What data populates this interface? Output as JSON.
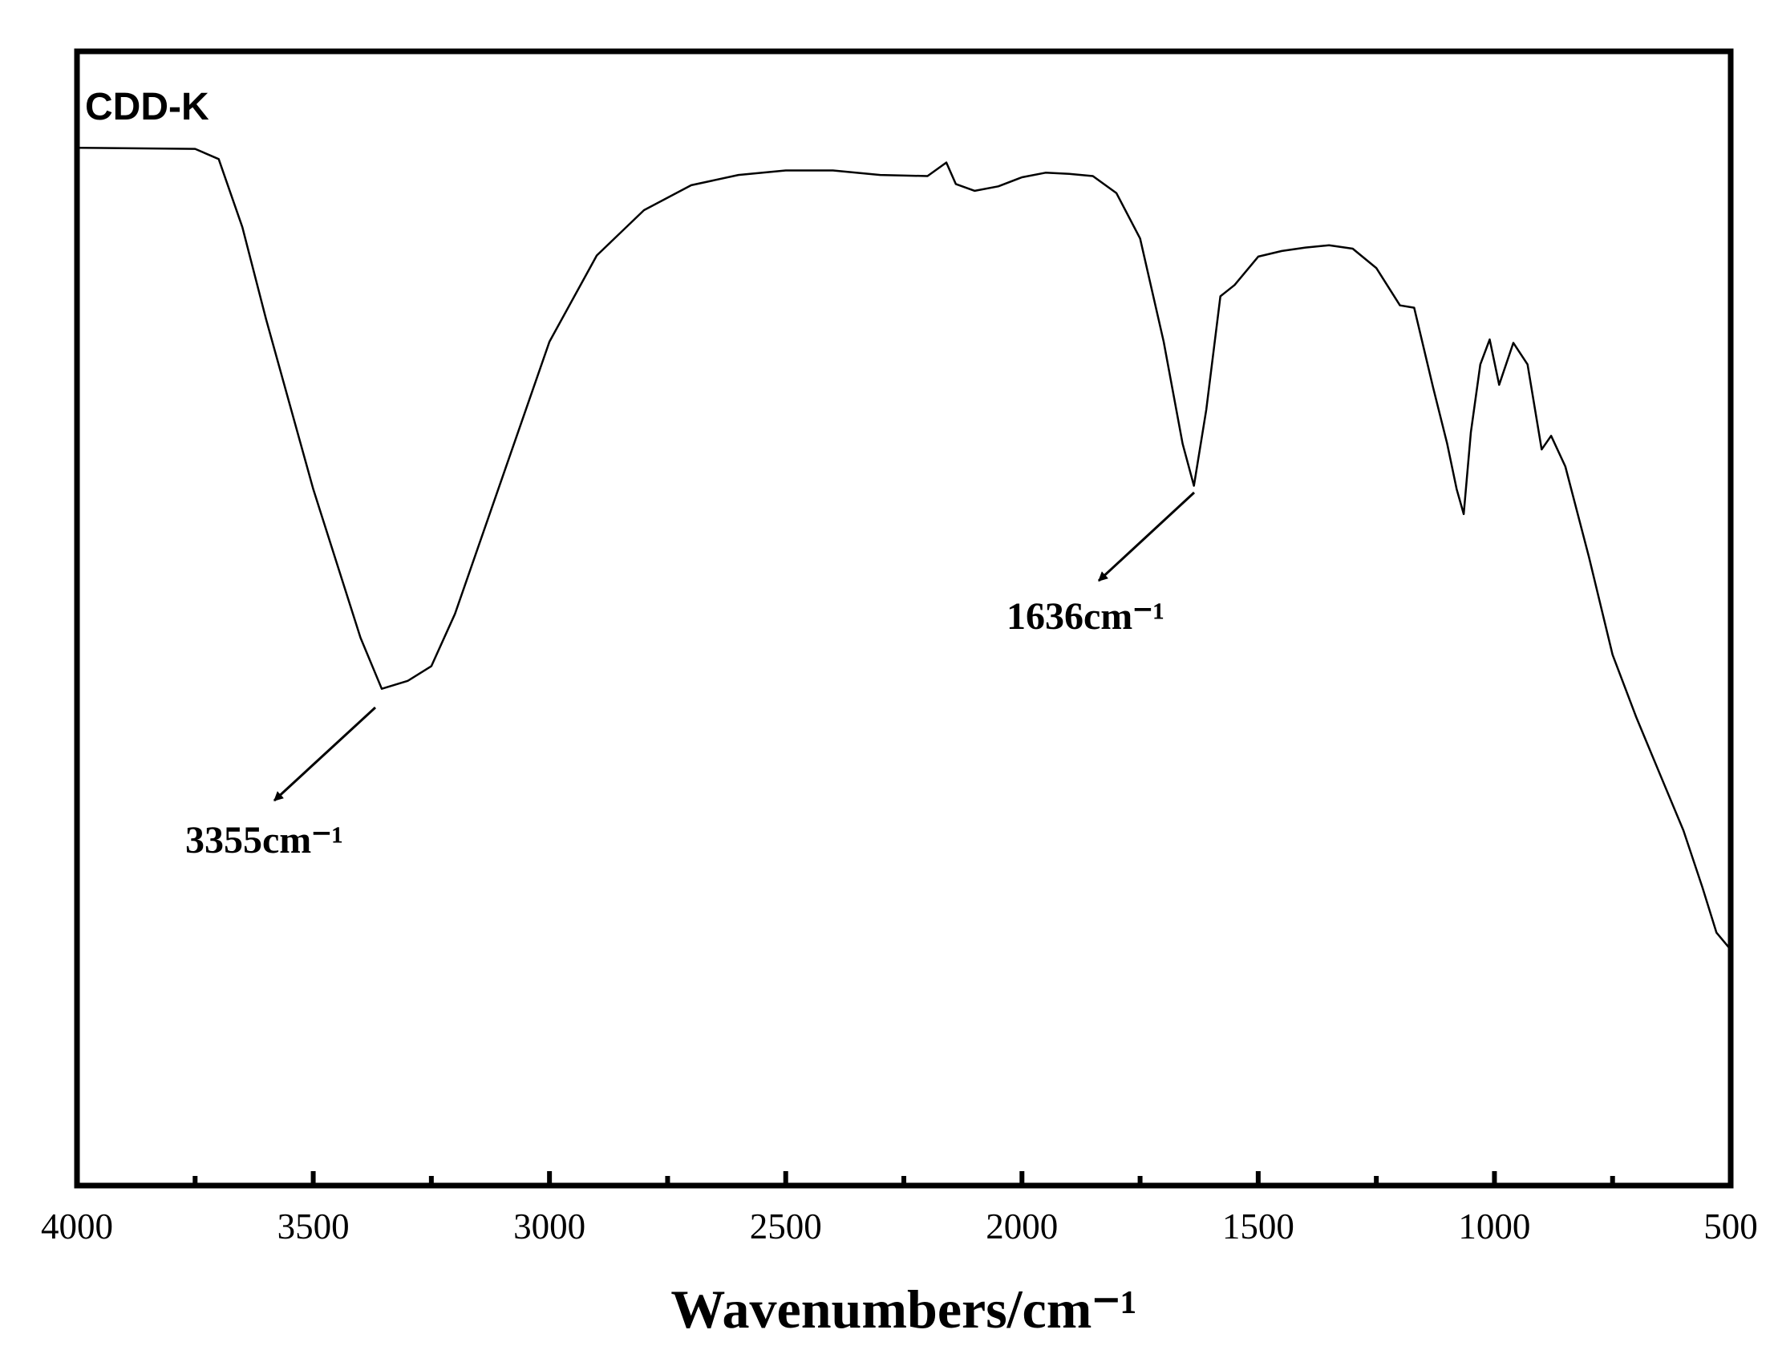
{
  "chart_data": {
    "type": "line",
    "title": "CDD-K",
    "xlabel": "Wavenumbers/cm⁻¹",
    "x": [
      4000,
      3750,
      3700,
      3650,
      3600,
      3500,
      3400,
      3355,
      3300,
      3250,
      3200,
      3100,
      3000,
      2900,
      2800,
      2700,
      2600,
      2500,
      2400,
      2300,
      2200,
      2160,
      2140,
      2100,
      2050,
      2000,
      1950,
      1900,
      1850,
      1800,
      1750,
      1700,
      1660,
      1636,
      1610,
      1580,
      1550,
      1500,
      1450,
      1400,
      1350,
      1300,
      1250,
      1200,
      1170,
      1130,
      1100,
      1080,
      1065,
      1050,
      1030,
      1010,
      990,
      960,
      930,
      900,
      880,
      850,
      800,
      750,
      700,
      650,
      600,
      560,
      530,
      510,
      500
    ],
    "series": [
      {
        "name": "CDD-K",
        "color": "#000000",
        "values": [
          91.5,
          91.4,
          90.5,
          84.5,
          76.4,
          61.4,
          48.3,
          43.8,
          44.5,
          45.8,
          50.4,
          62.4,
          74.4,
          82,
          86,
          88.2,
          89.1,
          89.5,
          89.5,
          89.1,
          89,
          90.2,
          88.3,
          87.7,
          88.1,
          88.9,
          89.3,
          89.2,
          89,
          87.5,
          83.5,
          74.4,
          65.4,
          61.7,
          68.4,
          78.4,
          79.4,
          81.9,
          82.4,
          82.7,
          82.9,
          82.6,
          80.9,
          77.6,
          77.4,
          70.4,
          65.4,
          61.4,
          59.2,
          66.4,
          72.4,
          74.6,
          70.6,
          74.3,
          72.4,
          64.9,
          66.1,
          63.4,
          55.4,
          46.8,
          41.3,
          36.3,
          31.3,
          26.3,
          22.3,
          21.3,
          20.8
        ]
      }
    ],
    "xlim": [
      4000,
      500
    ],
    "ylim": [
      0,
      100
    ],
    "xticks": [
      4000,
      3500,
      3000,
      2500,
      2000,
      1500,
      1000,
      500
    ],
    "xminor_ticks": [
      3750,
      3250,
      2750,
      2250,
      1750,
      1250,
      750
    ],
    "annotations": [
      "3355cm⁻¹",
      "1636cm⁻¹"
    ]
  }
}
